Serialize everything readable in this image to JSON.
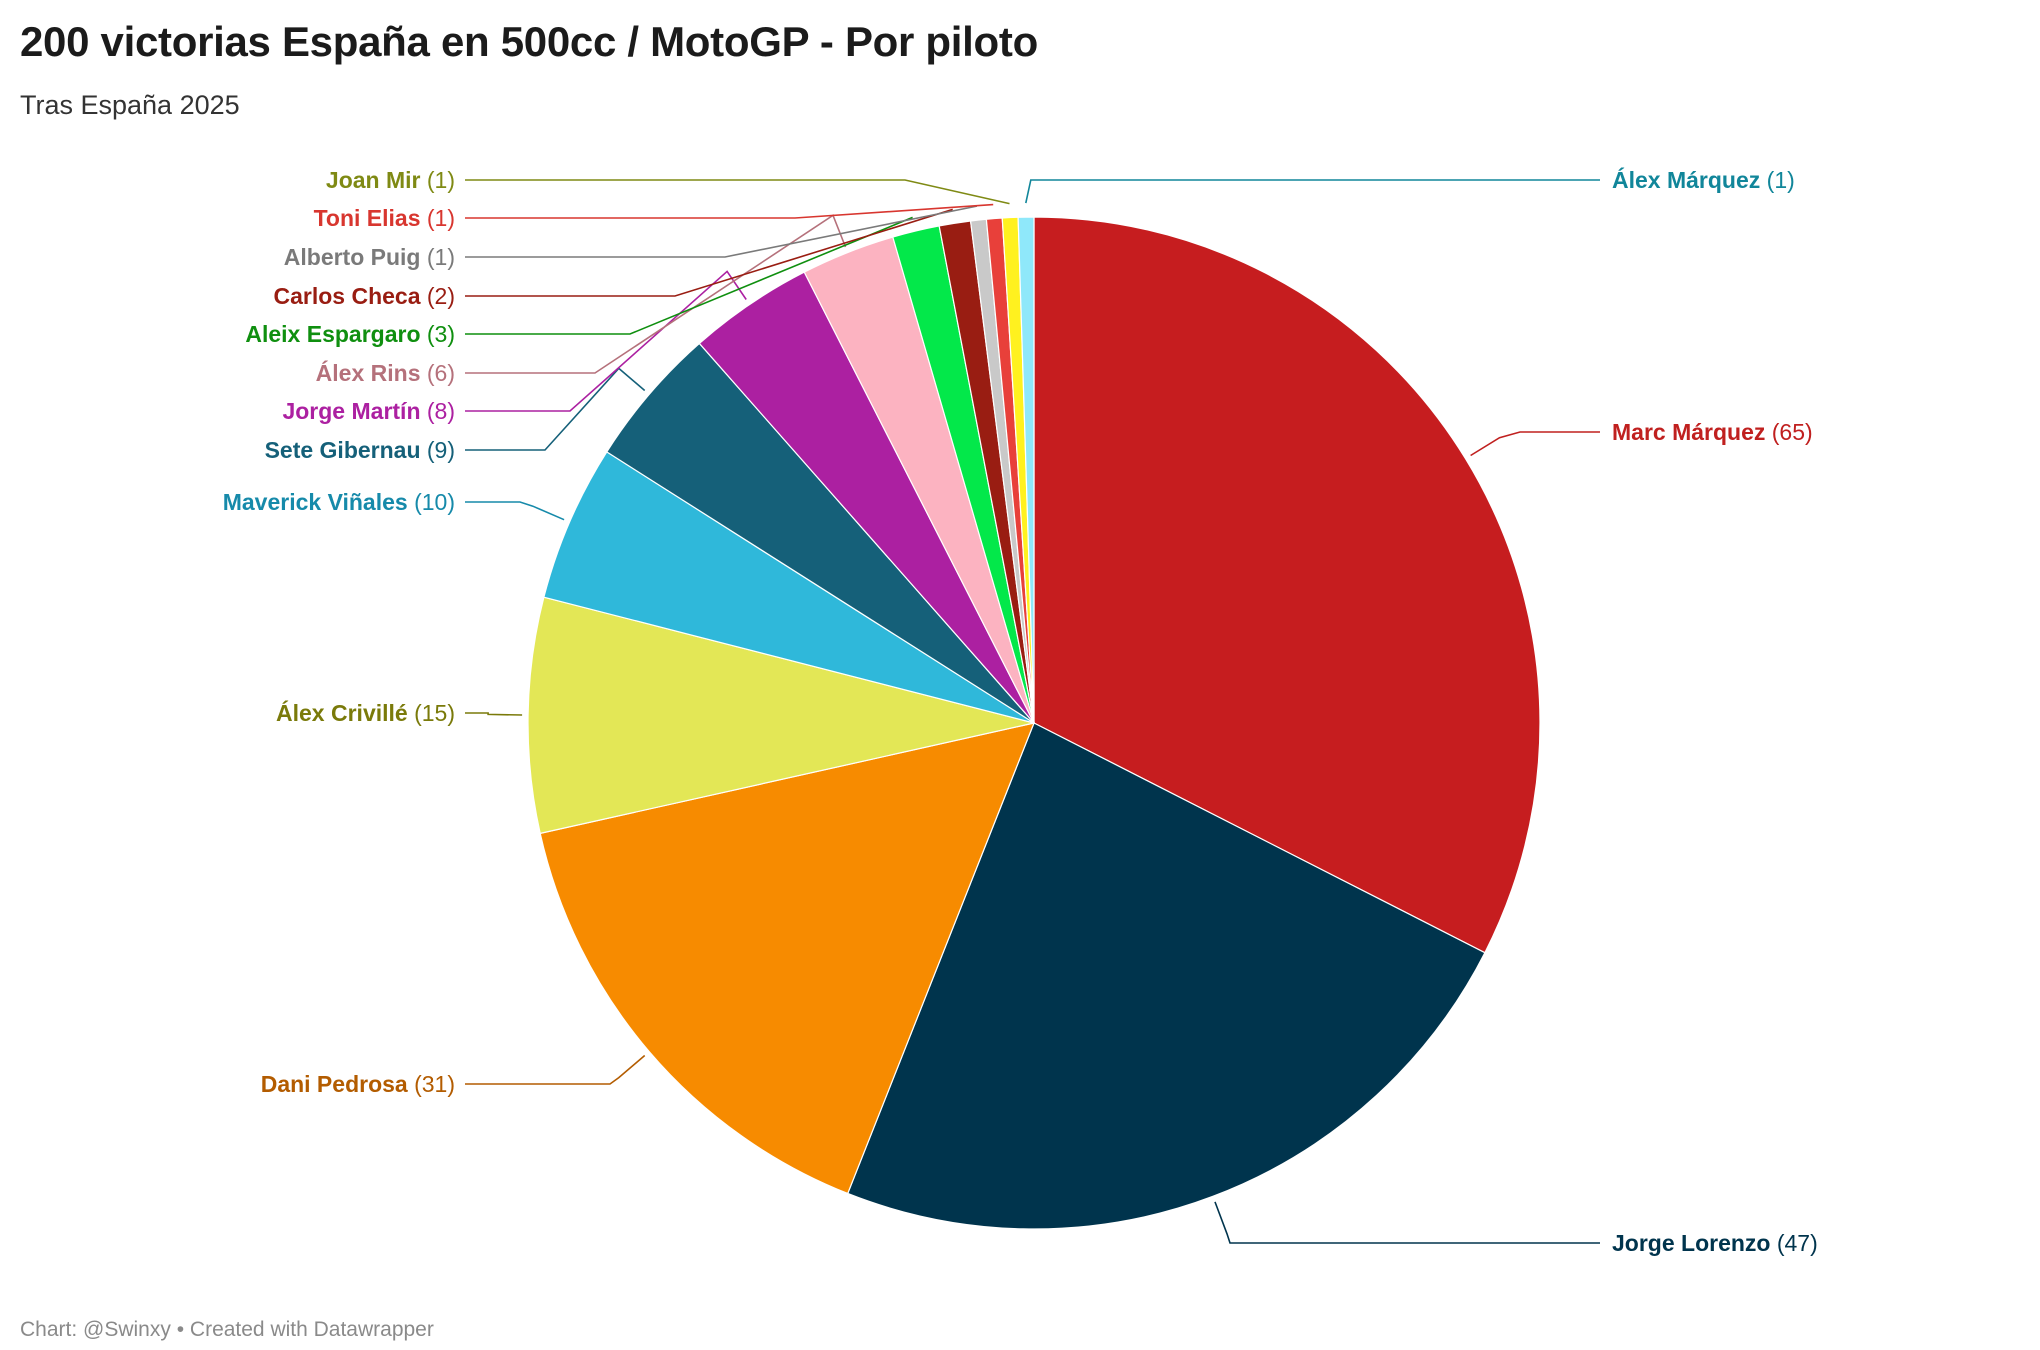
{
  "title": "200 victorias España en 500cc / MotoGP - Por piloto",
  "subtitle": "Tras España 2025",
  "footer": {
    "credit": "Chart: @Swinxy",
    "separator": "•",
    "tool": "Created with Datawrapper"
  },
  "chart_data": {
    "type": "pie",
    "title": "200 victorias España en 500cc / MotoGP - Por piloto",
    "subtitle": "Tras España 2025",
    "total": 200,
    "start": "12 o'clock, clockwise",
    "slices": [
      {
        "label": "Marc Márquez",
        "value": 65,
        "color": "#c61d1f",
        "text_color": "#c0201f"
      },
      {
        "label": "Jorge Lorenzo",
        "value": 47,
        "color": "#00344d",
        "text_color": "#00344d"
      },
      {
        "label": "Dani Pedrosa",
        "value": 31,
        "color": "#f78b00",
        "text_color": "#b35c00"
      },
      {
        "label": "Álex Crivillé",
        "value": 15,
        "color": "#e3e756",
        "text_color": "#7a7a0a"
      },
      {
        "label": "Maverick Viñales",
        "value": 10,
        "color": "#2fb8da",
        "text_color": "#168aaa"
      },
      {
        "label": "Sete Gibernau",
        "value": 9,
        "color": "#156079",
        "text_color": "#156079"
      },
      {
        "label": "Jorge Martín",
        "value": 8,
        "color": "#ac20a1",
        "text_color": "#ac20a1"
      },
      {
        "label": "Álex Rins",
        "value": 6,
        "color": "#fcb3c1",
        "text_color": "#b5717b"
      },
      {
        "label": "Aleix Espargaro",
        "value": 3,
        "color": "#03e84a",
        "text_color": "#0f8f0f"
      },
      {
        "label": "Carlos Checa",
        "value": 2,
        "color": "#991d12",
        "text_color": "#991d12"
      },
      {
        "label": "Alberto Puig",
        "value": 1,
        "color": "#c9c9c9",
        "text_color": "#7a7a7a"
      },
      {
        "label": "Toni Elias",
        "value": 1,
        "color": "#e8403a",
        "text_color": "#d8362f"
      },
      {
        "label": "Joan Mir",
        "value": 1,
        "color": "#fff11f",
        "text_color": "#7f8a14"
      },
      {
        "label": "Álex Márquez",
        "value": 1,
        "color": "#8fe8fa",
        "text_color": "#11869a"
      }
    ]
  }
}
